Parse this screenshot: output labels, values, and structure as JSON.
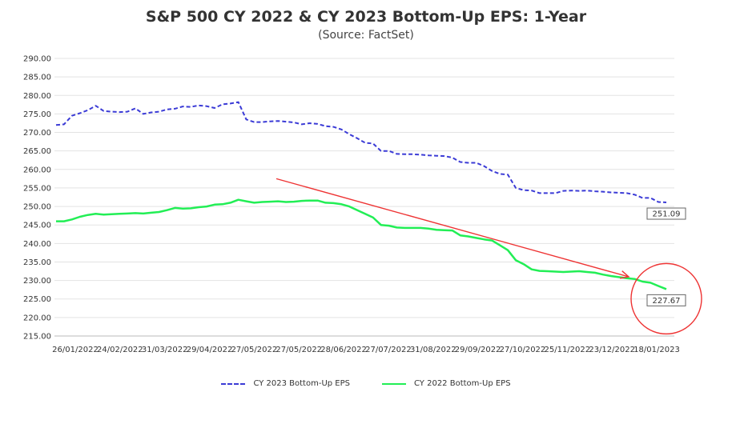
{
  "chart_data": {
    "type": "line",
    "title": "S&P 500 CY 2022 & CY 2023 Bottom-Up EPS: 1-Year",
    "subtitle": "(Source: FactSet)",
    "xlabel": "",
    "ylabel": "",
    "ylim": [
      215,
      290
    ],
    "yticks": [
      "290.00",
      "285.00",
      "280.00",
      "275.00",
      "270.00",
      "265.00",
      "260.00",
      "255.00",
      "250.00",
      "245.00",
      "240.00",
      "235.00",
      "230.00",
      "225.00",
      "220.00",
      "215.00"
    ],
    "xticks": [
      "26/01/2022",
      "24/02/2022",
      "31/03/2022",
      "29/04/2022",
      "27/05/2022",
      "27/05/2022",
      "28/06/2022",
      "27/07/2022",
      "31/08/2022",
      "29/09/2022",
      "27/10/2022",
      "25/11/2022",
      "23/12/2022",
      "18/01/2023"
    ],
    "grid": true,
    "legend_position": "bottom",
    "series": [
      {
        "name": "CY 2023 Bottom-Up EPS",
        "color": "#3b3bd6",
        "style": "dashed",
        "values": [
          272.0,
          272.2,
          274.5,
          275.2,
          276.0,
          277.2,
          275.8,
          275.6,
          275.5,
          275.6,
          276.5,
          275.0,
          275.4,
          275.6,
          276.2,
          276.4,
          277.0,
          276.9,
          277.3,
          277.1,
          276.6,
          277.6,
          277.8,
          278.2,
          273.5,
          272.8,
          272.8,
          273.0,
          273.1,
          272.9,
          272.7,
          272.2,
          272.5,
          272.3,
          271.7,
          271.5,
          270.8,
          269.5,
          268.4,
          267.2,
          267.0,
          265.0,
          265.0,
          264.2,
          264.1,
          264.1,
          264.0,
          263.8,
          263.7,
          263.6,
          263.2,
          262.0,
          261.8,
          261.8,
          260.9,
          259.6,
          258.8,
          258.6,
          255.0,
          254.4,
          254.3,
          253.6,
          253.6,
          253.6,
          254.2,
          254.3,
          254.2,
          254.3,
          254.1,
          254.0,
          253.8,
          253.7,
          253.6,
          253.2,
          252.3,
          252.3,
          251.2,
          251.09
        ]
      },
      {
        "name": "CY 2022 Bottom-Up EPS",
        "color": "#22ee55",
        "style": "solid",
        "values": [
          246.0,
          246.0,
          246.5,
          247.2,
          247.7,
          248.0,
          247.8,
          247.9,
          248.0,
          248.1,
          248.2,
          248.1,
          248.3,
          248.5,
          249.0,
          249.6,
          249.4,
          249.5,
          249.8,
          250.0,
          250.5,
          250.6,
          251.0,
          251.8,
          251.4,
          251.0,
          251.2,
          251.3,
          251.4,
          251.2,
          251.3,
          251.5,
          251.6,
          251.6,
          251.0,
          250.9,
          250.6,
          250.0,
          249.0,
          248.0,
          247.0,
          245.0,
          244.8,
          244.3,
          244.2,
          244.2,
          244.2,
          244.0,
          243.7,
          243.6,
          243.5,
          242.2,
          241.9,
          241.5,
          241.1,
          240.8,
          239.5,
          238.2,
          235.5,
          234.4,
          233.0,
          232.6,
          232.5,
          232.4,
          232.3,
          232.4,
          232.5,
          232.3,
          232.1,
          231.6,
          231.2,
          230.9,
          230.6,
          230.4,
          229.7,
          229.4,
          228.5,
          227.67
        ]
      }
    ],
    "annotations": [
      {
        "label": "251.09",
        "series": "CY 2023 Bottom-Up EPS",
        "value": 251.09
      },
      {
        "label": "227.67",
        "series": "CY 2022 Bottom-Up EPS",
        "value": 227.67
      }
    ],
    "arrow": {
      "from_value": 257.5,
      "to_value": 231.0,
      "color": "#ee3333"
    },
    "circle_highlight": {
      "color": "#ee3333"
    }
  }
}
